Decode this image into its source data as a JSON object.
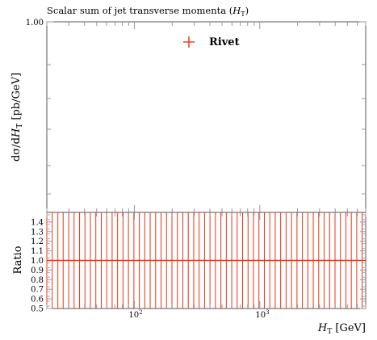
{
  "chart_data": [
    {
      "type": "scatter",
      "title": "Scalar sum of jet transverse momenta (H_T)",
      "title_display": {
        "main": "Scalar sum of jet transverse momenta (",
        "var": "H",
        "sub": "T",
        "close": ")"
      },
      "ylabel_display": {
        "d1": "dσ",
        "slash": "/",
        "d2": "d",
        "var": "H",
        "sub": "T",
        "unit": " [pb/GeV]"
      },
      "y_tick_labels": [
        "1.00"
      ],
      "xscale": "log",
      "xlim": [
        20,
        7000
      ],
      "legend": {
        "position": "top-center",
        "entries": [
          "Rivet"
        ]
      },
      "series": [
        {
          "name": "Rivet",
          "color": "#ee3311",
          "values": []
        }
      ]
    },
    {
      "type": "line",
      "xscale": "log",
      "xlim": [
        20,
        7000
      ],
      "ylim": [
        0.5,
        1.5
      ],
      "ylabel": "Ratio",
      "xlabel_display": {
        "var": "H",
        "sub": "T",
        "unit": " [GeV]"
      },
      "y_tick_labels": [
        "1.4",
        "1.3",
        "1.2",
        "1.1",
        "1.0",
        "0.9",
        "0.8",
        "0.7",
        "0.6",
        "0.5"
      ],
      "x_tick_labels": [
        {
          "base": "10",
          "exp": "2"
        },
        {
          "base": "10",
          "exp": "3"
        }
      ],
      "x_major_ticks": [
        100,
        1000
      ],
      "reference_value": 1.0,
      "series_color": "#ee3311",
      "bin_edges": [
        20,
        22.1,
        24.5,
        27.0,
        29.9,
        33.0,
        36.5,
        40.3,
        44.5,
        49.2,
        54.4,
        60.1,
        66.4,
        73.4,
        81.1,
        89.6,
        99.0,
        109.4,
        120.9,
        133.6,
        147.6,
        163.1,
        180.3,
        199.2,
        220.1,
        243.3,
        268.8,
        297.0,
        328.2,
        362.7,
        400.8,
        442.9,
        489.4,
        540.7,
        597.6,
        660.3,
        729.6,
        806.3,
        890.9,
        984.5,
        1087.9,
        1202.1,
        1328.3,
        1467.8,
        1621.9,
        1792.2,
        1980.4,
        2188.4,
        2418.2,
        2672.1,
        2952.6,
        3262.7,
        3605.3,
        3983.8,
        4402.1,
        4864.4,
        5375.1,
        5939.5,
        6563.2
      ]
    }
  ]
}
